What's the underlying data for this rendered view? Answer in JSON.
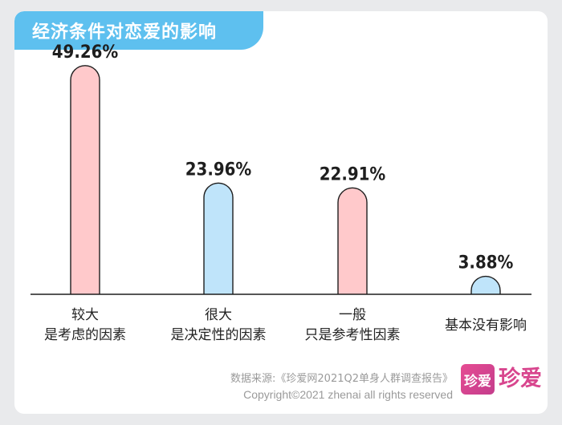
{
  "header": {
    "title": "经济条件对恋爱的影响"
  },
  "chart_data": {
    "type": "bar",
    "title": "经济条件对恋爱的影响",
    "categories": [
      [
        "较大",
        "是考虑的因素"
      ],
      [
        "很大",
        "是决定性的因素"
      ],
      [
        "一般",
        "只是参考性因素"
      ],
      [
        "基本没有影响"
      ]
    ],
    "values": [
      49.26,
      23.96,
      22.91,
      3.88
    ],
    "value_labels": [
      "49.26%",
      "23.96%",
      "22.91%",
      "3.88%"
    ],
    "bar_colors": [
      "#ffc9cb",
      "#bfe4fa",
      "#ffc9cb",
      "#bfe4fa"
    ],
    "bar_stroke": "#1e1e1e",
    "unit": "%"
  },
  "footer": {
    "source": "数据来源:《珍爱网2021Q2单身人群调查报告》",
    "copyright": "Copyright©2021  zhenai  all rights reserved",
    "logo_box_text": "珍爱",
    "logo_text": "珍爱"
  },
  "colors": {
    "accent": "#5ec0ef",
    "brand": "#d8468e",
    "background": "#e9eaec"
  }
}
